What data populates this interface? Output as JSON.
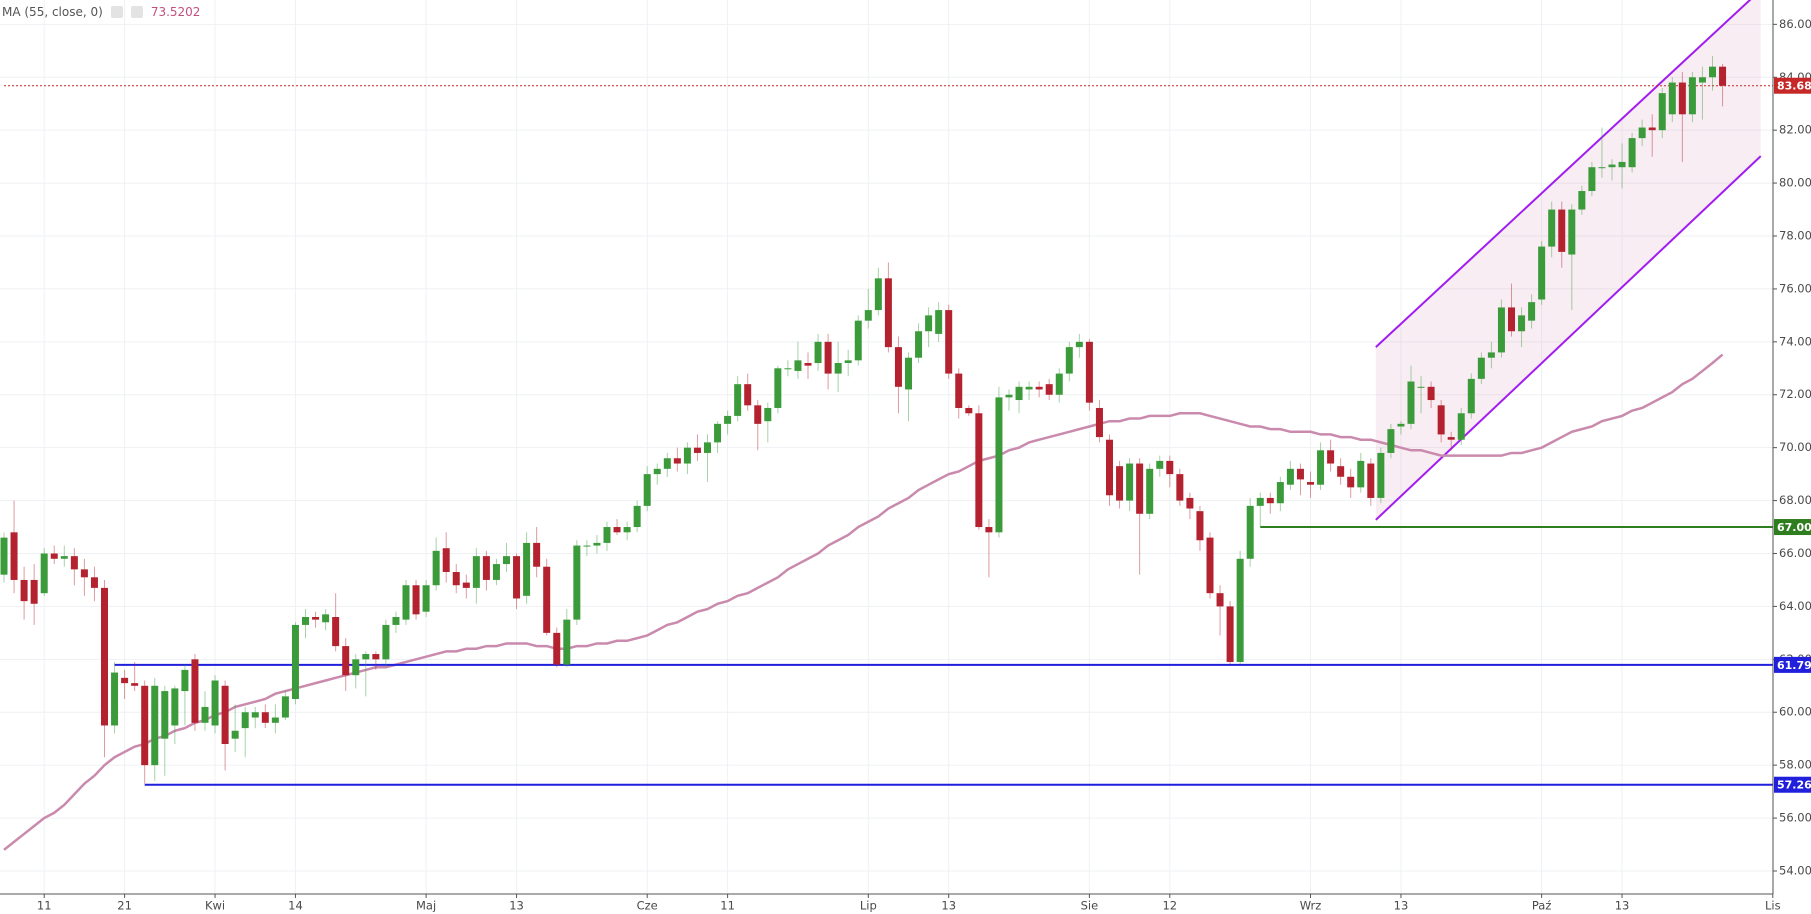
{
  "chart_data": {
    "type": "candlestick",
    "up_color": "#3b9b3b",
    "down_color": "#b3222e",
    "ylim": [
      53.13,
      86.92
    ],
    "yticks": [
      {
        "value": 54,
        "label": "54.00"
      },
      {
        "value": 56,
        "label": "56.00"
      },
      {
        "value": 58,
        "label": "58.00"
      },
      {
        "value": 60,
        "label": "60.00"
      },
      {
        "value": 62,
        "label": "62.00"
      },
      {
        "value": 64,
        "label": "64.00"
      },
      {
        "value": 66,
        "label": "66.00"
      },
      {
        "value": 68,
        "label": "68.00"
      },
      {
        "value": 70,
        "label": "70.00"
      },
      {
        "value": 72,
        "label": "72.00"
      },
      {
        "value": 74,
        "label": "74.00"
      },
      {
        "value": 76,
        "label": "76.00"
      },
      {
        "value": 78,
        "label": "78.00"
      },
      {
        "value": 80,
        "label": "80.00"
      },
      {
        "value": 82,
        "label": "82.00"
      },
      {
        "value": 84,
        "label": "84.00"
      },
      {
        "value": 86,
        "label": "86.00"
      }
    ],
    "grid": true,
    "categories": [
      null,
      null,
      null,
      null,
      "11",
      null,
      null,
      null,
      null,
      null,
      null,
      null,
      "21",
      null,
      null,
      null,
      null,
      null,
      null,
      null,
      null,
      "Kwi",
      null,
      null,
      null,
      null,
      null,
      null,
      null,
      "14",
      null,
      null,
      null,
      null,
      null,
      null,
      null,
      null,
      null,
      null,
      null,
      null,
      "Maj",
      null,
      null,
      null,
      null,
      null,
      null,
      null,
      null,
      "13",
      null,
      null,
      null,
      null,
      null,
      null,
      null,
      null,
      null,
      null,
      null,
      null,
      "Cze",
      null,
      null,
      null,
      null,
      null,
      null,
      null,
      "11",
      null,
      null,
      null,
      null,
      null,
      null,
      null,
      null,
      null,
      null,
      null,
      null,
      null,
      "Lip",
      null,
      null,
      null,
      null,
      null,
      null,
      null,
      "13",
      null,
      null,
      null,
      null,
      null,
      null,
      null,
      null,
      null,
      null,
      null,
      null,
      null,
      "Sie",
      null,
      null,
      null,
      null,
      null,
      null,
      null,
      "12",
      null,
      null,
      null,
      null,
      null,
      null,
      null,
      null,
      null,
      null,
      null,
      null,
      null,
      "Wrz",
      null,
      null,
      null,
      null,
      null,
      null,
      null,
      null,
      "13",
      null,
      null,
      null,
      null,
      null,
      null,
      null,
      null,
      null,
      null,
      null,
      null,
      null,
      "Paź",
      null,
      null,
      null,
      null,
      null,
      null,
      null,
      "13",
      null,
      null,
      null,
      null,
      null,
      null,
      null,
      null,
      null,
      null,
      null,
      null,
      null,
      null,
      "Lis"
    ],
    "ohlc": [
      [
        65.2,
        66.8,
        64.9,
        66.6
      ],
      [
        66.8,
        68,
        64.5,
        65
      ],
      [
        65,
        65.5,
        63.5,
        64.2
      ],
      [
        65,
        65.6,
        63.3,
        64.1
      ],
      [
        64.5,
        66.2,
        64.4,
        66
      ],
      [
        66,
        66.3,
        65.6,
        65.8
      ],
      [
        65.8,
        66.3,
        65.5,
        65.9
      ],
      [
        65.9,
        66.2,
        64.8,
        65.4
      ],
      [
        65.4,
        65.8,
        64.4,
        65.1
      ],
      [
        65.1,
        65.5,
        64.2,
        64.7
      ],
      [
        64.7,
        65,
        58.3,
        59.5
      ],
      [
        59.5,
        61.9,
        59.2,
        61.5
      ],
      [
        61.3,
        61.6,
        60.5,
        61.1
      ],
      [
        61.1,
        61.9,
        60.8,
        61
      ],
      [
        61,
        61.2,
        57.3,
        58
      ],
      [
        58,
        61.3,
        57.4,
        61
      ],
      [
        59,
        61,
        57.6,
        60.8
      ],
      [
        59.5,
        61,
        58.8,
        60.9
      ],
      [
        60.8,
        61.8,
        59.5,
        61.6
      ],
      [
        62,
        62.2,
        59.3,
        59.6
      ],
      [
        59.6,
        60.8,
        59.3,
        60.2
      ],
      [
        59.5,
        61.4,
        59.2,
        61.2
      ],
      [
        61,
        61.2,
        57.8,
        58.8
      ],
      [
        59,
        60.3,
        58.5,
        59.3
      ],
      [
        59.4,
        60.2,
        58.3,
        60
      ],
      [
        59.8,
        60.2,
        59.4,
        60
      ],
      [
        60,
        60.3,
        59.4,
        59.6
      ],
      [
        59.6,
        60.3,
        59.2,
        59.8
      ],
      [
        59.8,
        60.8,
        59.7,
        60.6
      ],
      [
        60.5,
        63.4,
        60.3,
        63.3
      ],
      [
        63.3,
        63.9,
        62.8,
        63.6
      ],
      [
        63.6,
        63.8,
        63.2,
        63.5
      ],
      [
        63.4,
        63.9,
        63.1,
        63.7
      ],
      [
        63.6,
        64.5,
        62.3,
        62.5
      ],
      [
        62.5,
        62.8,
        60.8,
        61.4
      ],
      [
        61.4,
        62.2,
        60.9,
        62
      ],
      [
        62,
        62.3,
        60.6,
        62.2
      ],
      [
        62.2,
        62.3,
        61.6,
        62
      ],
      [
        62,
        63.5,
        61.7,
        63.3
      ],
      [
        63.3,
        63.8,
        63,
        63.6
      ],
      [
        63.5,
        65,
        63.3,
        64.8
      ],
      [
        64.8,
        65,
        63.5,
        63.7
      ],
      [
        63.8,
        65,
        63.6,
        64.8
      ],
      [
        64.8,
        66.6,
        64.6,
        66.1
      ],
      [
        66.2,
        66.8,
        64.9,
        65.3
      ],
      [
        65.3,
        65.6,
        64.5,
        64.8
      ],
      [
        64.9,
        65.2,
        64.3,
        64.7
      ],
      [
        64.7,
        66.2,
        64.1,
        65.9
      ],
      [
        65.9,
        66.1,
        64.6,
        65
      ],
      [
        65,
        65.8,
        64.8,
        65.6
      ],
      [
        65.6,
        66.4,
        65.3,
        65.9
      ],
      [
        65.9,
        66,
        63.9,
        64.3
      ],
      [
        64.4,
        66.8,
        64.1,
        66.4
      ],
      [
        66.4,
        67,
        65.1,
        65.5
      ],
      [
        65.5,
        65.8,
        62.9,
        63
      ],
      [
        63,
        63.2,
        61.7,
        61.8
      ],
      [
        61.8,
        63.9,
        61.7,
        63.5
      ],
      [
        63.5,
        66.5,
        63.3,
        66.3
      ],
      [
        66.3,
        66.5,
        65.9,
        66.3
      ],
      [
        66.3,
        66.7,
        66,
        66.4
      ],
      [
        66.4,
        67.2,
        66.1,
        67
      ],
      [
        67,
        67.3,
        66.7,
        66.8
      ],
      [
        66.8,
        67.2,
        66.5,
        67
      ],
      [
        67,
        68,
        66.8,
        67.8
      ],
      [
        67.8,
        69.3,
        67.6,
        69
      ],
      [
        69,
        69.4,
        68.6,
        69.2
      ],
      [
        69.2,
        69.8,
        68.9,
        69.6
      ],
      [
        69.6,
        70,
        69.1,
        69.4
      ],
      [
        69.4,
        70.2,
        69,
        70
      ],
      [
        70,
        70.5,
        69.5,
        69.8
      ],
      [
        69.8,
        70.5,
        68.7,
        70.2
      ],
      [
        70.2,
        71,
        69.8,
        70.9
      ],
      [
        70.9,
        71.4,
        70.5,
        71.2
      ],
      [
        71.2,
        72.7,
        71,
        72.4
      ],
      [
        72.4,
        72.8,
        71.4,
        71.6
      ],
      [
        71.6,
        71.8,
        69.9,
        70.9
      ],
      [
        71,
        71.7,
        70.2,
        71.5
      ],
      [
        71.5,
        73.1,
        71.3,
        73
      ],
      [
        73,
        73.3,
        72.7,
        73
      ],
      [
        72.9,
        74,
        72.6,
        73.3
      ],
      [
        73.2,
        73.6,
        72.6,
        73.1
      ],
      [
        73.2,
        74.3,
        72.9,
        74
      ],
      [
        74,
        74.3,
        72.2,
        72.8
      ],
      [
        72.8,
        74,
        72.1,
        73.2
      ],
      [
        73.2,
        73.7,
        72.7,
        73.3
      ],
      [
        73.3,
        75,
        73.1,
        74.8
      ],
      [
        74.8,
        76,
        74.5,
        75.2
      ],
      [
        75.2,
        76.8,
        75,
        76.4
      ],
      [
        76.4,
        77,
        73.6,
        73.8
      ],
      [
        73.8,
        74.2,
        71.3,
        72.3
      ],
      [
        72.2,
        73.6,
        71,
        73.4
      ],
      [
        73.4,
        74.7,
        73.2,
        74.4
      ],
      [
        74.4,
        75.3,
        73.8,
        75
      ],
      [
        74.3,
        75.5,
        74,
        75.2
      ],
      [
        75.2,
        75.4,
        72.6,
        72.8
      ],
      [
        72.8,
        73,
        71.1,
        71.5
      ],
      [
        71.5,
        71.6,
        71.2,
        71.3
      ],
      [
        71.3,
        71.6,
        66.9,
        67
      ],
      [
        67,
        67.3,
        65.1,
        66.8
      ],
      [
        66.8,
        72.3,
        66.6,
        71.9
      ],
      [
        71.9,
        72.2,
        71.4,
        72
      ],
      [
        71.8,
        72.5,
        71.3,
        72.3
      ],
      [
        72.2,
        72.5,
        71.8,
        72.3
      ],
      [
        72.3,
        72.5,
        71.9,
        72.2
      ],
      [
        72.4,
        72.6,
        71.8,
        72
      ],
      [
        72,
        73,
        71.7,
        72.8
      ],
      [
        72.8,
        74,
        72.5,
        73.8
      ],
      [
        73.8,
        74.3,
        73.4,
        74
      ],
      [
        74,
        74.1,
        71.4,
        71.7
      ],
      [
        71.5,
        71.8,
        70.2,
        70.4
      ],
      [
        70.3,
        70.5,
        67.8,
        68.2
      ],
      [
        69.3,
        69.5,
        67.7,
        68
      ],
      [
        68,
        69.6,
        67.6,
        69.4
      ],
      [
        69.4,
        69.6,
        65.2,
        67.5
      ],
      [
        67.5,
        69.4,
        67.3,
        69.2
      ],
      [
        69.2,
        69.7,
        68.9,
        69.5
      ],
      [
        69.5,
        69.7,
        68.5,
        69
      ],
      [
        69,
        69.2,
        67.8,
        68
      ],
      [
        68.1,
        68.3,
        67.3,
        67.7
      ],
      [
        67.6,
        67.8,
        66.1,
        66.5
      ],
      [
        66.6,
        66.8,
        64.3,
        64.5
      ],
      [
        64.5,
        64.8,
        62.9,
        64
      ],
      [
        64,
        64.2,
        61.8,
        61.9
      ],
      [
        61.9,
        66.1,
        61.8,
        65.8
      ],
      [
        65.8,
        68.1,
        65.5,
        67.8
      ],
      [
        67.8,
        68.3,
        67,
        68.1
      ],
      [
        68.1,
        68.3,
        67.5,
        67.9
      ],
      [
        67.9,
        68.9,
        67.6,
        68.7
      ],
      [
        68.6,
        69.5,
        68.4,
        69.2
      ],
      [
        69.2,
        69.4,
        68.2,
        68.8
      ],
      [
        68.7,
        69.1,
        68.1,
        68.6
      ],
      [
        68.6,
        70.2,
        68.4,
        69.9
      ],
      [
        69.9,
        70.3,
        69.1,
        69.4
      ],
      [
        69.3,
        69.6,
        68.6,
        68.9
      ],
      [
        68.9,
        69.2,
        68.1,
        68.5
      ],
      [
        68.5,
        69.8,
        68.3,
        69.5
      ],
      [
        69.4,
        69.6,
        67.8,
        68.1
      ],
      [
        68.1,
        70,
        67.9,
        69.8
      ],
      [
        69.8,
        70.9,
        69.6,
        70.7
      ],
      [
        70.8,
        71,
        70.5,
        70.9
      ],
      [
        70.9,
        73.1,
        70.7,
        72.5
      ],
      [
        72.3,
        72.7,
        71.3,
        72.3
      ],
      [
        72.3,
        72.5,
        71.5,
        71.8
      ],
      [
        71.6,
        71.8,
        70.2,
        70.5
      ],
      [
        70.4,
        70.6,
        69.9,
        70.3
      ],
      [
        70.3,
        71.5,
        70.1,
        71.3
      ],
      [
        71.3,
        72.8,
        71.1,
        72.6
      ],
      [
        72.6,
        73.6,
        72.4,
        73.4
      ],
      [
        73.4,
        74,
        73,
        73.6
      ],
      [
        73.6,
        75.6,
        73.4,
        75.3
      ],
      [
        75.3,
        76.2,
        74.2,
        74.4
      ],
      [
        74.4,
        75.3,
        73.8,
        75
      ],
      [
        74.8,
        75.8,
        74.5,
        75.5
      ],
      [
        75.6,
        77.8,
        75.4,
        77.6
      ],
      [
        77.6,
        79.3,
        77.2,
        79
      ],
      [
        79,
        79.3,
        76.8,
        77.4
      ],
      [
        77.3,
        79.2,
        75.2,
        79
      ],
      [
        79,
        79.9,
        78.8,
        79.7
      ],
      [
        79.7,
        80.8,
        79.5,
        80.6
      ],
      [
        80.6,
        82.1,
        80.2,
        80.6
      ],
      [
        80.6,
        80.9,
        80.1,
        80.7
      ],
      [
        80.6,
        81.5,
        79.8,
        80.8
      ],
      [
        80.6,
        81.9,
        80.4,
        81.7
      ],
      [
        81.7,
        82.4,
        81.4,
        82.1
      ],
      [
        82.1,
        82.6,
        81,
        82
      ],
      [
        82,
        83.6,
        81.7,
        83.4
      ],
      [
        82.6,
        84,
        82.3,
        83.8
      ],
      [
        83.8,
        84.2,
        80.8,
        82.6
      ],
      [
        82.6,
        84.2,
        82.3,
        84
      ],
      [
        83.8,
        84.4,
        82.4,
        84
      ],
      [
        84,
        84.8,
        83.5,
        84.4
      ],
      [
        84.4,
        84.5,
        82.9,
        83.68
      ],
      null,
      null,
      null,
      null,
      null
    ],
    "ma": {
      "name": "MA (55, close, 0)",
      "color": "#c98aad",
      "value_color": "#c2507f",
      "values": [
        54.8,
        55.1,
        55.4,
        55.7,
        56.0,
        56.2,
        56.5,
        56.9,
        57.3,
        57.6,
        58.0,
        58.3,
        58.5,
        58.7,
        58.8,
        59.0,
        59.1,
        59.3,
        59.4,
        59.6,
        59.7,
        59.9,
        60.0,
        60.2,
        60.3,
        60.4,
        60.5,
        60.7,
        60.8,
        60.9,
        61.0,
        61.1,
        61.2,
        61.3,
        61.4,
        61.5,
        61.6,
        61.7,
        61.7,
        61.8,
        61.9,
        62.0,
        62.1,
        62.2,
        62.3,
        62.3,
        62.4,
        62.4,
        62.5,
        62.5,
        62.6,
        62.6,
        62.6,
        62.5,
        62.5,
        62.4,
        62.4,
        62.5,
        62.5,
        62.6,
        62.6,
        62.7,
        62.7,
        62.8,
        62.9,
        63.1,
        63.3,
        63.4,
        63.6,
        63.8,
        63.9,
        64.1,
        64.2,
        64.4,
        64.5,
        64.7,
        64.9,
        65.1,
        65.4,
        65.6,
        65.8,
        66.0,
        66.3,
        66.5,
        66.7,
        67.0,
        67.2,
        67.4,
        67.7,
        67.9,
        68.1,
        68.4,
        68.6,
        68.8,
        69.0,
        69.1,
        69.3,
        69.5,
        69.6,
        69.7,
        69.9,
        70.0,
        70.2,
        70.3,
        70.4,
        70.5,
        70.6,
        70.7,
        70.8,
        70.9,
        71.0,
        71.0,
        71.1,
        71.1,
        71.2,
        71.2,
        71.2,
        71.3,
        71.3,
        71.3,
        71.2,
        71.1,
        71.0,
        70.9,
        70.8,
        70.8,
        70.7,
        70.7,
        70.6,
        70.6,
        70.6,
        70.5,
        70.5,
        70.4,
        70.4,
        70.3,
        70.3,
        70.2,
        70.1,
        70.0,
        69.9,
        69.9,
        69.8,
        69.7,
        69.7,
        69.7,
        69.7,
        69.7,
        69.7,
        69.7,
        69.8,
        69.8,
        69.9,
        70.0,
        70.2,
        70.4,
        70.6,
        70.7,
        70.8,
        71.0,
        71.1,
        71.2,
        71.4,
        71.5,
        71.7,
        71.9,
        72.1,
        72.4,
        72.6,
        72.9,
        73.2,
        73.5202,
        null,
        null,
        null,
        null,
        null
      ]
    },
    "levels": [
      {
        "value": 83.68,
        "label": "83.68",
        "color": "#c62828",
        "x": 0,
        "dotted": true
      },
      {
        "value": 61.79,
        "label": "61.79",
        "color": "#1f1fdc",
        "x": 11
      },
      {
        "value": 57.26,
        "label": "57.26",
        "color": "#1f1fdc",
        "x": 14
      },
      {
        "value": 67.0,
        "label": "67.00",
        "color": "#2e7d1e",
        "x": 125
      }
    ],
    "channel": {
      "x": [
        136.5,
        174.8
      ],
      "upper": [
        73.8,
        87.3
      ],
      "lower": [
        67.27,
        81.02
      ],
      "color": "#a21cf0"
    }
  }
}
